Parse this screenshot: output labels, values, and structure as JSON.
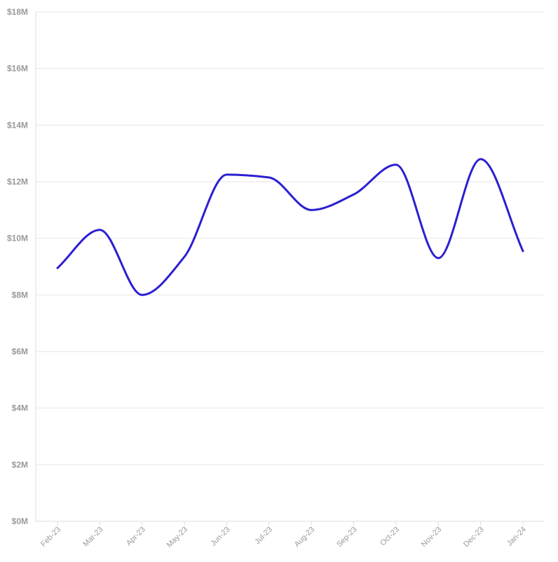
{
  "chart_data": {
    "type": "line",
    "title": "",
    "xlabel": "",
    "ylabel": "",
    "categories": [
      "Feb-23",
      "Mar-23",
      "Apr-23",
      "May-23",
      "Jun-23",
      "Jul-23",
      "Aug-23",
      "Sep-23",
      "Oct-23",
      "Nov-23",
      "Dec-23",
      "Jan-24"
    ],
    "series": [
      {
        "values": [
          8.95,
          10.3,
          8.0,
          9.35,
          12.25,
          12.15,
          11.0,
          11.55,
          12.6,
          9.3,
          12.8,
          9.55
        ],
        "color": "#2b1fd1"
      }
    ],
    "ylim": [
      0,
      18
    ],
    "y_ticks": [
      0,
      2,
      4,
      6,
      8,
      10,
      12,
      14,
      16,
      18
    ],
    "y_tick_labels": [
      "$0M",
      "$2M",
      "$4M",
      "$6M",
      "$8M",
      "$10M",
      "$12M",
      "$14M",
      "$16M",
      "$18M"
    ],
    "grid": true,
    "legend": "none"
  }
}
